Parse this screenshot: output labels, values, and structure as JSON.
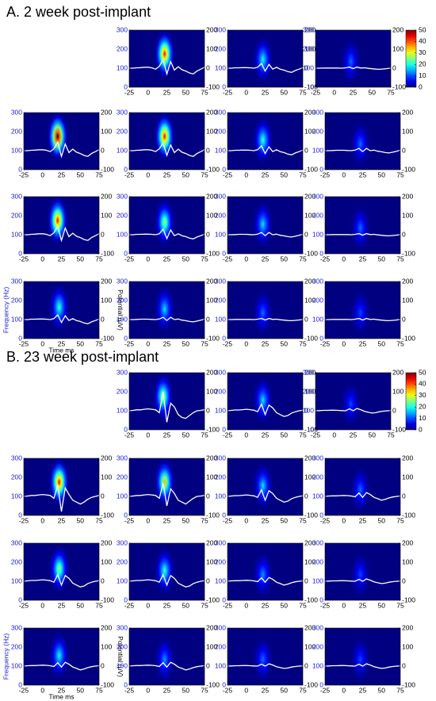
{
  "chart_data": {
    "type": "spectrogram-grid",
    "xlim": [
      -25,
      75
    ],
    "xticks": [
      -25,
      0,
      25,
      50,
      75
    ],
    "ylim": [
      0,
      300
    ],
    "yticks": [
      0,
      100,
      200,
      300
    ],
    "y2lim": [
      -100,
      200
    ],
    "y2ticks": [
      -100,
      0,
      100,
      200
    ],
    "clim": [
      0,
      50
    ],
    "cticks": [
      0,
      10,
      20,
      30,
      40,
      50
    ],
    "xlabel": "Time ms",
    "ylabel": "Frequency (Hz)",
    "y2label": "Potential (μV)",
    "line_color": "#ffffff",
    "x": [
      -25,
      -20,
      -15,
      -10,
      -5,
      0,
      5,
      10,
      15,
      20,
      25,
      30,
      35,
      40,
      45,
      50,
      55,
      60,
      65,
      70,
      75
    ],
    "sections": [
      {
        "title": "A.  2 week post-implant",
        "rows": [
          [
            null,
            {
              "peak": {
                "t": 22,
                "f": 150,
                "power": 45
              },
              "values": [
                0,
                0,
                2,
                3,
                5,
                5,
                2,
                -5,
                10,
                45,
                -30,
                35,
                -10,
                8,
                -8,
                -15,
                -25,
                -30,
                -15,
                -5,
                5
              ]
            },
            {
              "peak": {
                "t": 22,
                "f": 120,
                "power": 20
              },
              "values": [
                0,
                0,
                2,
                2,
                3,
                3,
                2,
                0,
                5,
                25,
                -15,
                20,
                -5,
                5,
                -5,
                -10,
                -18,
                -22,
                -12,
                -5,
                3
              ]
            },
            {
              "peak": {
                "t": 22,
                "f": 110,
                "power": 12
              },
              "values": [
                0,
                0,
                1,
                1,
                1,
                1,
                1,
                0,
                2,
                6,
                -2,
                6,
                1,
                2,
                -1,
                -3,
                -5,
                -6,
                -4,
                -2,
                1
              ]
            }
          ],
          [
            {
              "peak": {
                "t": 20,
                "f": 150,
                "power": 55
              },
              "values": [
                0,
                0,
                2,
                3,
                5,
                5,
                2,
                -5,
                10,
                45,
                -30,
                35,
                -10,
                8,
                -8,
                -15,
                -25,
                -30,
                -15,
                -5,
                5
              ]
            },
            {
              "peak": {
                "t": 22,
                "f": 150,
                "power": 45
              },
              "values": [
                0,
                0,
                2,
                3,
                5,
                5,
                2,
                -5,
                10,
                40,
                -25,
                30,
                -10,
                8,
                -8,
                -15,
                -25,
                -30,
                -15,
                -5,
                5
              ]
            },
            {
              "peak": {
                "t": 22,
                "f": 130,
                "power": 22
              },
              "values": [
                0,
                0,
                2,
                2,
                3,
                3,
                2,
                0,
                5,
                25,
                -15,
                20,
                -5,
                5,
                -5,
                -10,
                -18,
                -22,
                -12,
                -5,
                3
              ]
            },
            {
              "peak": {
                "t": 22,
                "f": 110,
                "power": 12
              },
              "values": [
                0,
                0,
                1,
                2,
                2,
                2,
                1,
                0,
                3,
                12,
                -5,
                12,
                0,
                3,
                -3,
                -6,
                -10,
                -12,
                -8,
                -3,
                2
              ]
            }
          ],
          [
            {
              "peak": {
                "t": 20,
                "f": 150,
                "power": 45
              },
              "values": [
                0,
                0,
                2,
                3,
                5,
                5,
                2,
                -5,
                10,
                45,
                -30,
                35,
                -10,
                8,
                -8,
                -15,
                -25,
                -30,
                -15,
                -5,
                5
              ]
            },
            {
              "peak": {
                "t": 22,
                "f": 140,
                "power": 28
              },
              "values": [
                0,
                0,
                2,
                2,
                3,
                3,
                2,
                0,
                5,
                30,
                -20,
                25,
                -5,
                5,
                -5,
                -10,
                -18,
                -22,
                -12,
                -5,
                3
              ]
            },
            {
              "peak": {
                "t": 22,
                "f": 130,
                "power": 18
              },
              "values": [
                0,
                0,
                1,
                2,
                2,
                2,
                1,
                0,
                3,
                12,
                -5,
                12,
                0,
                3,
                -3,
                -6,
                -10,
                -12,
                -8,
                -3,
                2
              ]
            },
            {
              "peak": {
                "t": 22,
                "f": 110,
                "power": 12
              },
              "values": [
                0,
                0,
                1,
                1,
                1,
                1,
                1,
                0,
                2,
                6,
                -2,
                6,
                1,
                2,
                -1,
                -3,
                -5,
                -6,
                -4,
                -2,
                1
              ]
            }
          ],
          [
            {
              "peak": {
                "t": 22,
                "f": 140,
                "power": 22
              },
              "values": [
                0,
                0,
                2,
                2,
                3,
                3,
                2,
                0,
                5,
                25,
                -15,
                20,
                -5,
                5,
                -5,
                -10,
                -18,
                -22,
                -12,
                -5,
                3
              ]
            },
            {
              "peak": {
                "t": 22,
                "f": 130,
                "power": 18
              },
              "values": [
                0,
                0,
                1,
                2,
                2,
                2,
                1,
                0,
                3,
                12,
                -5,
                12,
                0,
                3,
                -3,
                -6,
                -10,
                -12,
                -8,
                -3,
                2
              ]
            },
            {
              "peak": {
                "t": 22,
                "f": 110,
                "power": 12
              },
              "values": [
                0,
                0,
                1,
                1,
                1,
                1,
                1,
                0,
                2,
                6,
                -2,
                6,
                1,
                2,
                -1,
                -3,
                -5,
                -6,
                -4,
                -2,
                1
              ]
            },
            {
              "peak": {
                "t": 22,
                "f": 110,
                "power": 10
              },
              "values": [
                0,
                0,
                1,
                1,
                1,
                1,
                1,
                0,
                2,
                6,
                -2,
                6,
                1,
                2,
                -1,
                -3,
                -5,
                -6,
                -4,
                -2,
                1
              ]
            }
          ]
        ]
      },
      {
        "title": "B.  23 week post-implant",
        "rows": [
          [
            null,
            {
              "peak": {
                "t": 20,
                "f": 150,
                "power": 30
              },
              "values": [
                0,
                2,
                5,
                5,
                8,
                10,
                8,
                5,
                -10,
                100,
                -60,
                40,
                20,
                -20,
                -35,
                -40,
                -25,
                -10,
                0,
                2,
                5
              ]
            },
            {
              "peak": {
                "t": 22,
                "f": 130,
                "power": 18
              },
              "values": [
                0,
                2,
                4,
                4,
                6,
                8,
                6,
                3,
                -5,
                35,
                -20,
                30,
                15,
                -10,
                -20,
                -30,
                -25,
                -12,
                -5,
                0,
                3
              ]
            },
            {
              "peak": {
                "t": 22,
                "f": 110,
                "power": 10
              },
              "values": [
                0,
                1,
                2,
                2,
                3,
                3,
                2,
                1,
                0,
                10,
                0,
                12,
                6,
                -3,
                -8,
                -12,
                -10,
                -5,
                -2,
                0,
                1
              ]
            }
          ],
          [
            {
              "peak": {
                "t": 22,
                "f": 150,
                "power": 45
              },
              "values": [
                0,
                2,
                5,
                5,
                8,
                10,
                8,
                5,
                -10,
                60,
                -80,
                45,
                10,
                -20,
                -30,
                -40,
                -30,
                -15,
                -5,
                0,
                5
              ]
            },
            {
              "peak": {
                "t": 22,
                "f": 150,
                "power": 35
              },
              "values": [
                0,
                2,
                5,
                5,
                8,
                10,
                8,
                5,
                -10,
                70,
                -50,
                40,
                15,
                -20,
                -30,
                -40,
                -25,
                -10,
                0,
                2,
                5
              ]
            },
            {
              "peak": {
                "t": 22,
                "f": 130,
                "power": 18
              },
              "values": [
                0,
                2,
                4,
                4,
                6,
                8,
                6,
                3,
                -5,
                35,
                -20,
                30,
                15,
                -10,
                -20,
                -30,
                -25,
                -12,
                -5,
                0,
                3
              ]
            },
            {
              "peak": {
                "t": 22,
                "f": 110,
                "power": 12
              },
              "values": [
                0,
                2,
                3,
                3,
                4,
                5,
                4,
                2,
                -2,
                18,
                -5,
                20,
                10,
                -5,
                -12,
                -20,
                -15,
                -8,
                -3,
                0,
                2
              ]
            }
          ],
          [
            {
              "peak": {
                "t": 22,
                "f": 140,
                "power": 28
              },
              "values": [
                0,
                2,
                4,
                4,
                6,
                8,
                6,
                3,
                -5,
                35,
                -20,
                30,
                15,
                -10,
                -20,
                -30,
                -25,
                -12,
                -5,
                0,
                3
              ]
            },
            {
              "peak": {
                "t": 22,
                "f": 130,
                "power": 22
              },
              "values": [
                0,
                2,
                4,
                4,
                6,
                8,
                6,
                3,
                -5,
                35,
                -20,
                30,
                15,
                -10,
                -20,
                -30,
                -25,
                -12,
                -5,
                0,
                3
              ]
            },
            {
              "peak": {
                "t": 22,
                "f": 110,
                "power": 14
              },
              "values": [
                0,
                2,
                3,
                3,
                4,
                5,
                4,
                2,
                -2,
                18,
                -5,
                20,
                10,
                -5,
                -12,
                -20,
                -15,
                -8,
                -3,
                0,
                2
              ]
            },
            {
              "peak": {
                "t": 22,
                "f": 110,
                "power": 10
              },
              "values": [
                0,
                1,
                2,
                2,
                3,
                3,
                2,
                1,
                0,
                10,
                0,
                12,
                6,
                -3,
                -8,
                -12,
                -10,
                -5,
                -2,
                0,
                1
              ]
            }
          ],
          [
            {
              "peak": {
                "t": 22,
                "f": 130,
                "power": 20
              },
              "values": [
                0,
                2,
                3,
                3,
                4,
                5,
                4,
                2,
                -2,
                18,
                -5,
                20,
                10,
                -5,
                -12,
                -20,
                -15,
                -8,
                -3,
                0,
                2
              ]
            },
            {
              "peak": {
                "t": 22,
                "f": 110,
                "power": 14
              },
              "values": [
                0,
                2,
                3,
                3,
                4,
                5,
                4,
                2,
                -2,
                18,
                -5,
                20,
                10,
                -5,
                -12,
                -20,
                -15,
                -8,
                -3,
                0,
                2
              ]
            },
            {
              "peak": {
                "t": 22,
                "f": 110,
                "power": 12
              },
              "values": [
                0,
                1,
                2,
                2,
                3,
                3,
                2,
                1,
                0,
                10,
                0,
                12,
                6,
                -3,
                -8,
                -12,
                -10,
                -5,
                -2,
                0,
                1
              ]
            },
            {
              "peak": {
                "t": 22,
                "f": 110,
                "power": 10
              },
              "values": [
                0,
                1,
                2,
                2,
                3,
                3,
                2,
                1,
                0,
                10,
                0,
                12,
                6,
                -3,
                -8,
                -12,
                -10,
                -5,
                -2,
                0,
                1
              ]
            }
          ]
        ]
      }
    ]
  }
}
